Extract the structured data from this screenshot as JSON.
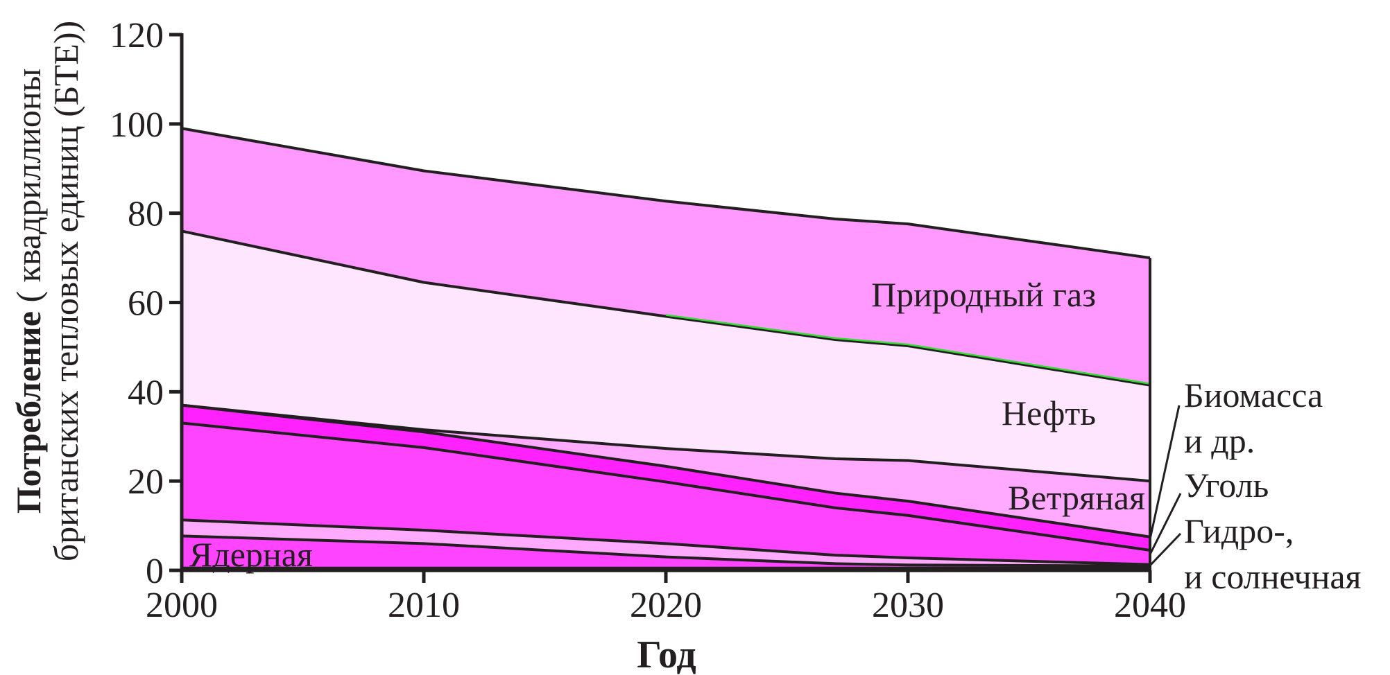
{
  "chart_data": {
    "type": "area",
    "stacked": true,
    "x": [
      2000,
      2010,
      2020,
      2027,
      2030,
      2040
    ],
    "xlim": [
      2000,
      2040
    ],
    "ylim": [
      0,
      120
    ],
    "x_ticks": [
      "2000",
      "2010",
      "2020",
      "2030",
      "2040"
    ],
    "y_ticks": [
      "0",
      "20",
      "40",
      "60",
      "80",
      "100",
      "120"
    ],
    "xlabel": "Год",
    "ylabel_bold": "Потребление",
    "ylabel_rest": " ( квадриллионы",
    "ylabel_line2": "британских тепловых единиц (БТЕ))",
    "grid": false,
    "legend": "none",
    "series": [
      {
        "name": "Гидро-, и солнечная",
        "label": "",
        "color": "#ff44ff",
        "values": [
          0.5,
          0.5,
          0.5,
          0.5,
          0.5,
          0.5
        ]
      },
      {
        "name": "Ядерная",
        "label": "Ядерная",
        "color": "#ff44ff",
        "values": [
          7.2,
          5.5,
          2.5,
          1.0,
          0.7,
          0.5
        ]
      },
      {
        "name": "Уголь",
        "label": "",
        "color": "#ffaaff",
        "values": [
          3.6,
          3.0,
          3.0,
          1.9,
          1.6,
          0.3
        ]
      },
      {
        "name": "Биомасса и др.",
        "label": "",
        "color": "#ff44ff",
        "values": [
          21.7,
          18.5,
          13.8,
          10.6,
          9.5,
          3.2
        ]
      },
      {
        "name": "Ветряная",
        "label": "Ветряная",
        "color": "#ff22ff",
        "values": [
          4.0,
          3.5,
          3.5,
          3.3,
          3.2,
          3.0
        ]
      },
      {
        "name": "Нефть",
        "label": "",
        "color": "#ffaaff",
        "values": [
          0.0,
          0.5,
          4.0,
          7.7,
          9.1,
          12.5
        ]
      },
      {
        "name": "Нефть",
        "label": "Нефть",
        "color": "#ffe6ff",
        "values": [
          39.0,
          33.0,
          29.6,
          26.7,
          25.7,
          21.5
        ]
      },
      {
        "name": "Природный газ",
        "label": "Природный газ",
        "color": "#ff99ff",
        "values": [
          23.0,
          25.0,
          25.8,
          27.0,
          27.3,
          28.5
        ]
      }
    ],
    "legend_labels": [
      "Биомасса",
      "и др.",
      "Уголь",
      "Гидро-,",
      "и солнечная"
    ],
    "outline_color": "#231f20",
    "highlight_line_color": "#33dd33"
  }
}
